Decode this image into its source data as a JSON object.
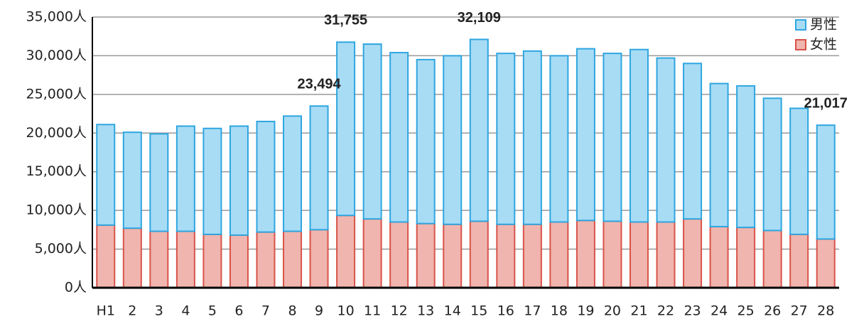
{
  "chart_data": {
    "type": "stacked_bar",
    "categories": [
      "H1",
      "2",
      "3",
      "4",
      "5",
      "6",
      "7",
      "8",
      "9",
      "10",
      "11",
      "12",
      "13",
      "14",
      "15",
      "16",
      "17",
      "18",
      "19",
      "20",
      "21",
      "22",
      "23",
      "24",
      "25",
      "26",
      "27",
      "28"
    ],
    "series": [
      {
        "name": "女性",
        "color": "#f0b5ae",
        "edge": "#d9534a",
        "values": [
          8100,
          7700,
          7300,
          7300,
          6900,
          6800,
          7200,
          7300,
          7500,
          9350,
          8900,
          8500,
          8300,
          8200,
          8600,
          8200,
          8200,
          8500,
          8700,
          8600,
          8500,
          8500,
          8900,
          7900,
          7800,
          7400,
          6900,
          6300
        ]
      },
      {
        "name": "男性",
        "color": "#a8dcf5",
        "edge": "#2ea6e0",
        "values": [
          13000,
          12400,
          12600,
          13600,
          13700,
          14100,
          14300,
          14900,
          15994,
          22405,
          22600,
          21900,
          21200,
          21800,
          23509,
          22100,
          22400,
          21500,
          22200,
          21700,
          22300,
          21200,
          20100,
          18500,
          18300,
          17100,
          16300,
          14717
        ]
      }
    ],
    "annotations": [
      {
        "x": "9",
        "text": "23,494"
      },
      {
        "x": "10",
        "text": "31,755"
      },
      {
        "x": "15",
        "text": "32,109"
      },
      {
        "x": "28",
        "text": "21,017"
      }
    ],
    "ylim": [
      0,
      35000
    ],
    "yticks": [
      {
        "value": 0,
        "label": "0人"
      },
      {
        "value": 5000,
        "label": "5,000人"
      },
      {
        "value": 10000,
        "label": "10,000人"
      },
      {
        "value": 15000,
        "label": "15,000人"
      },
      {
        "value": 20000,
        "label": "20,000人"
      },
      {
        "value": 25000,
        "label": "25,000人"
      },
      {
        "value": 30000,
        "label": "30,000人"
      },
      {
        "value": 35000,
        "label": "35,000人"
      }
    ],
    "grid": true,
    "legend": "top-right"
  }
}
